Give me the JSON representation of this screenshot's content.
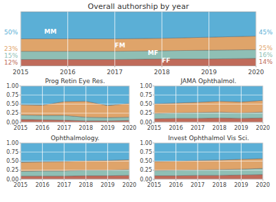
{
  "chart_data": [
    {
      "type": "area",
      "stacked": true,
      "title": "Overall authorship by year",
      "x": [
        2015,
        2016,
        2017,
        2018,
        2019,
        2020
      ],
      "series": [
        {
          "name": "FF",
          "color": "#c06b5a",
          "values": [
            0.12,
            0.12,
            0.12,
            0.13,
            0.13,
            0.14
          ]
        },
        {
          "name": "MF",
          "color": "#8fbfb5",
          "values": [
            0.15,
            0.15,
            0.15,
            0.15,
            0.16,
            0.16
          ]
        },
        {
          "name": "FM",
          "color": "#dfa46a",
          "values": [
            0.23,
            0.23,
            0.23,
            0.23,
            0.24,
            0.25
          ]
        },
        {
          "name": "MM",
          "color": "#5bafd6",
          "values": [
            0.5,
            0.5,
            0.5,
            0.49,
            0.47,
            0.45
          ]
        }
      ],
      "xlim": [
        2015,
        2020
      ],
      "xticks": [
        2015,
        2016,
        2017,
        2018,
        2019,
        2020
      ],
      "ylim": [
        0,
        1
      ],
      "tick_labels": "x",
      "grid": "x",
      "annotations": [
        {
          "text": "MM",
          "x": 2015.5,
          "y": 0.6,
          "color": "#ffffff"
        },
        {
          "text": "FM",
          "x": 2017.0,
          "y": 0.34,
          "color": "#ffffff"
        },
        {
          "text": "MF",
          "x": 2017.7,
          "y": 0.205,
          "color": "#ffffff"
        },
        {
          "text": "FF",
          "x": 2018.0,
          "y": 0.065,
          "color": "#ffffff"
        },
        {
          "text": "12%",
          "x": 2015,
          "y": 0.06,
          "color": "#c06b5a"
        },
        {
          "text": "15%",
          "x": 2015,
          "y": 0.195,
          "color": "#8fbfb5"
        },
        {
          "text": "23%",
          "x": 2015,
          "y": 0.32,
          "color": "#dfa46a"
        },
        {
          "text": "50%",
          "x": 2015,
          "y": 0.625,
          "color": "#5bafd6"
        },
        {
          "text": "14%",
          "x": 2020,
          "y": 0.07,
          "color": "#c06b5a"
        },
        {
          "text": "16%",
          "x": 2020,
          "y": 0.205,
          "color": "#8fbfb5"
        },
        {
          "text": "25%",
          "x": 2020,
          "y": 0.325,
          "color": "#dfa46a"
        },
        {
          "text": "45%",
          "x": 2020,
          "y": 0.625,
          "color": "#5bafd6"
        }
      ]
    },
    {
      "type": "area",
      "stacked": true,
      "title": "Prog Retin Eye Res.",
      "x": [
        2015,
        2016,
        2017,
        2018,
        2019,
        2020
      ],
      "series": [
        {
          "name": "FF",
          "color": "#c06b5a",
          "values": [
            0.08,
            0.07,
            0.06,
            0.04,
            0.04,
            0.05
          ]
        },
        {
          "name": "MF",
          "color": "#8fbfb5",
          "values": [
            0.12,
            0.12,
            0.13,
            0.1,
            0.09,
            0.09
          ]
        },
        {
          "name": "FM",
          "color": "#dfa46a",
          "values": [
            0.28,
            0.28,
            0.38,
            0.44,
            0.33,
            0.38
          ]
        },
        {
          "name": "MM",
          "color": "#5bafd6",
          "values": [
            0.52,
            0.53,
            0.43,
            0.42,
            0.54,
            0.48
          ]
        }
      ],
      "xlim": [
        2015,
        2020
      ],
      "xticks": [
        2015,
        2016,
        2017,
        2018,
        2019,
        2020
      ],
      "ylim": [
        0,
        1
      ],
      "yticks": [
        {
          "value": 0,
          "label": "0.00"
        },
        {
          "value": 0.25,
          "label": "0.25"
        },
        {
          "value": 0.5,
          "label": "0.50"
        },
        {
          "value": 0.75,
          "label": "0.75"
        },
        {
          "value": 1,
          "label": "1.00"
        }
      ],
      "grid": true
    },
    {
      "type": "area",
      "stacked": true,
      "title": "JAMA Ophthalmol.",
      "x": [
        2015,
        2016,
        2017,
        2018,
        2019,
        2020
      ],
      "series": [
        {
          "name": "FF",
          "color": "#c06b5a",
          "values": [
            0.1,
            0.11,
            0.11,
            0.12,
            0.11,
            0.12
          ]
        },
        {
          "name": "MF",
          "color": "#8fbfb5",
          "values": [
            0.14,
            0.15,
            0.16,
            0.16,
            0.15,
            0.16
          ]
        },
        {
          "name": "FM",
          "color": "#dfa46a",
          "values": [
            0.27,
            0.27,
            0.28,
            0.3,
            0.3,
            0.32
          ]
        },
        {
          "name": "MM",
          "color": "#5bafd6",
          "values": [
            0.49,
            0.47,
            0.45,
            0.42,
            0.44,
            0.4
          ]
        }
      ],
      "xlim": [
        2015,
        2020
      ],
      "xticks": [
        2015,
        2016,
        2017,
        2018,
        2019,
        2020
      ],
      "ylim": [
        0,
        1
      ],
      "yticks": [
        {
          "value": 0,
          "label": "0.00"
        },
        {
          "value": 0.25,
          "label": "0.25"
        },
        {
          "value": 0.5,
          "label": "0.50"
        },
        {
          "value": 0.75,
          "label": "0.75"
        },
        {
          "value": 1,
          "label": "1.00"
        }
      ],
      "grid": true
    },
    {
      "type": "area",
      "stacked": true,
      "title": "Ophthalmology.",
      "x": [
        2015,
        2016,
        2017,
        2018,
        2019,
        2020
      ],
      "series": [
        {
          "name": "FF",
          "color": "#c06b5a",
          "values": [
            0.09,
            0.09,
            0.09,
            0.1,
            0.1,
            0.11
          ]
        },
        {
          "name": "MF",
          "color": "#8fbfb5",
          "values": [
            0.13,
            0.14,
            0.14,
            0.15,
            0.15,
            0.16
          ]
        },
        {
          "name": "FM",
          "color": "#dfa46a",
          "values": [
            0.25,
            0.25,
            0.26,
            0.26,
            0.27,
            0.27
          ]
        },
        {
          "name": "MM",
          "color": "#5bafd6",
          "values": [
            0.53,
            0.52,
            0.51,
            0.49,
            0.48,
            0.46
          ]
        }
      ],
      "xlim": [
        2015,
        2020
      ],
      "xticks": [
        2015,
        2016,
        2017,
        2018,
        2019,
        2020
      ],
      "ylim": [
        0,
        1
      ],
      "yticks": [
        {
          "value": 0,
          "label": "0.00"
        },
        {
          "value": 0.25,
          "label": "0.25"
        },
        {
          "value": 0.5,
          "label": "0.50"
        },
        {
          "value": 0.75,
          "label": "0.75"
        },
        {
          "value": 1,
          "label": "1.00"
        }
      ],
      "grid": true
    },
    {
      "type": "area",
      "stacked": true,
      "title": "Invest Ophthalmol Vis Sci.",
      "x": [
        2015,
        2016,
        2017,
        2018,
        2019,
        2020
      ],
      "series": [
        {
          "name": "FF",
          "color": "#c06b5a",
          "values": [
            0.1,
            0.1,
            0.11,
            0.11,
            0.12,
            0.13
          ]
        },
        {
          "name": "MF",
          "color": "#8fbfb5",
          "values": [
            0.14,
            0.15,
            0.15,
            0.16,
            0.16,
            0.17
          ]
        },
        {
          "name": "FM",
          "color": "#dfa46a",
          "values": [
            0.25,
            0.25,
            0.26,
            0.26,
            0.27,
            0.27
          ]
        },
        {
          "name": "MM",
          "color": "#5bafd6",
          "values": [
            0.51,
            0.5,
            0.48,
            0.47,
            0.45,
            0.43
          ]
        }
      ],
      "xlim": [
        2015,
        2020
      ],
      "xticks": [
        2015,
        2016,
        2017,
        2018,
        2019,
        2020
      ],
      "ylim": [
        0,
        1
      ],
      "yticks": [
        {
          "value": 0,
          "label": "0.00"
        },
        {
          "value": 0.25,
          "label": "0.25"
        },
        {
          "value": 0.5,
          "label": "0.50"
        },
        {
          "value": 0.75,
          "label": "0.75"
        },
        {
          "value": 1,
          "label": "1.00"
        }
      ],
      "grid": true
    }
  ]
}
